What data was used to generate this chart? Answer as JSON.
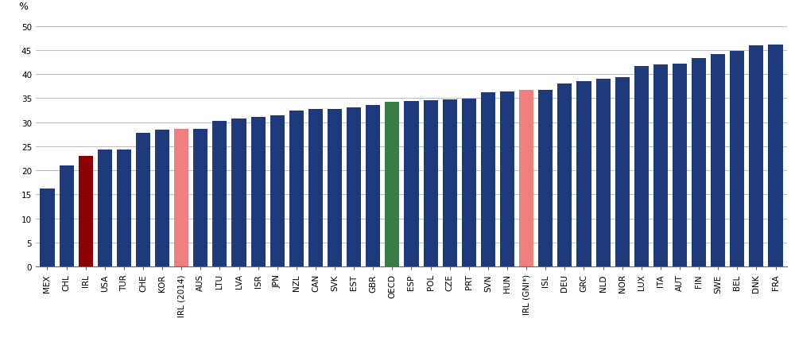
{
  "categories": [
    "MEX",
    "CHL",
    "IRL",
    "USA",
    "TUR",
    "CHE",
    "KOR",
    "IRL (2014)",
    "AUS",
    "LTU",
    "LVA",
    "ISR",
    "JPN",
    "NZL",
    "CAN",
    "SVK",
    "EST",
    "GBR",
    "OECD",
    "ESP",
    "POL",
    "CZE",
    "PRT",
    "SVN",
    "HUN",
    "IRL (GNI*)",
    "ISL",
    "DEU",
    "GRC",
    "NLD",
    "NOR",
    "LUX",
    "ITA",
    "AUT",
    "FIN",
    "SWE",
    "BEL",
    "DNK",
    "FRA"
  ],
  "values": [
    16.2,
    21.0,
    23.0,
    24.3,
    24.3,
    27.8,
    28.4,
    28.7,
    28.6,
    30.3,
    30.8,
    31.1,
    31.4,
    32.5,
    32.8,
    32.8,
    33.1,
    33.5,
    34.3,
    34.4,
    34.6,
    34.8,
    34.9,
    36.3,
    36.4,
    36.7,
    36.7,
    38.0,
    38.5,
    39.0,
    39.3,
    41.6,
    42.0,
    42.1,
    43.3,
    44.1,
    44.8,
    45.9,
    46.2
  ],
  "colors": [
    "#1f3a7a",
    "#1f3a7a",
    "#8b0000",
    "#1f3a7a",
    "#1f3a7a",
    "#1f3a7a",
    "#1f3a7a",
    "#f08080",
    "#1f3a7a",
    "#1f3a7a",
    "#1f3a7a",
    "#1f3a7a",
    "#1f3a7a",
    "#1f3a7a",
    "#1f3a7a",
    "#1f3a7a",
    "#1f3a7a",
    "#1f3a7a",
    "#3a7d44",
    "#1f3a7a",
    "#1f3a7a",
    "#1f3a7a",
    "#1f3a7a",
    "#1f3a7a",
    "#1f3a7a",
    "#f08080",
    "#1f3a7a",
    "#1f3a7a",
    "#1f3a7a",
    "#1f3a7a",
    "#1f3a7a",
    "#1f3a7a",
    "#1f3a7a",
    "#1f3a7a",
    "#1f3a7a",
    "#1f3a7a",
    "#1f3a7a",
    "#1f3a7a",
    "#1f3a7a"
  ],
  "ylim": [
    0,
    52
  ],
  "yticks": [
    0,
    5,
    10,
    15,
    20,
    25,
    30,
    35,
    40,
    45,
    50
  ],
  "percent_label": "%",
  "background_color": "#ffffff",
  "grid_color": "#c0c0c0",
  "tick_label_fontsize": 7.5,
  "bar_width": 0.75
}
